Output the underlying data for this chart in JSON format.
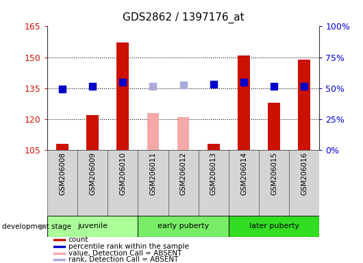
{
  "title": "GDS2862 / 1397176_at",
  "samples": [
    "GSM206008",
    "GSM206009",
    "GSM206010",
    "GSM206011",
    "GSM206012",
    "GSM206013",
    "GSM206014",
    "GSM206015",
    "GSM206016"
  ],
  "ylim_left": [
    105,
    165
  ],
  "ylim_right": [
    0,
    100
  ],
  "yticks_left": [
    105,
    120,
    135,
    150,
    165
  ],
  "yticks_right": [
    0,
    25,
    50,
    75,
    100
  ],
  "ytick_labels_right": [
    "0%",
    "25%",
    "50%",
    "75%",
    "100%"
  ],
  "bar_values": [
    108,
    122,
    157,
    null,
    null,
    108,
    151,
    128,
    149
  ],
  "bar_absent_values": [
    null,
    null,
    null,
    123,
    121,
    null,
    null,
    null,
    null
  ],
  "bar_color": "#cc1100",
  "bar_absent_color": "#f4a9a8",
  "rank_values": [
    134.5,
    136,
    138,
    null,
    null,
    137,
    138,
    136,
    136
  ],
  "rank_absent_values": [
    null,
    null,
    null,
    136,
    136.5,
    null,
    null,
    null,
    null
  ],
  "rank_color": "#0000cc",
  "rank_absent_color": "#aaaadd",
  "group_info": [
    {
      "start": 0,
      "end": 2,
      "label": "juvenile",
      "color": "#aaff99"
    },
    {
      "start": 3,
      "end": 5,
      "label": "early puberty",
      "color": "#77ee66"
    },
    {
      "start": 6,
      "end": 8,
      "label": "later puberty",
      "color": "#33dd22"
    }
  ],
  "dev_stage_label": "development stage",
  "legend_items": [
    {
      "label": "count",
      "color": "#cc1100"
    },
    {
      "label": "percentile rank within the sample",
      "color": "#0000cc"
    },
    {
      "label": "value, Detection Call = ABSENT",
      "color": "#f4a9a8"
    },
    {
      "label": "rank, Detection Call = ABSENT",
      "color": "#aaaadd"
    }
  ],
  "background_color": "#ffffff",
  "tick_label_color_left": "#cc1100",
  "tick_label_color_right": "#0000cc",
  "bar_width": 0.4,
  "rank_marker_size": 7,
  "grid_lines": [
    120,
    135,
    150
  ]
}
